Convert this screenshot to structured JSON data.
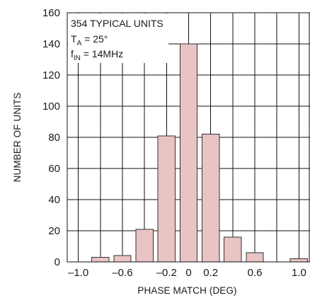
{
  "chart_data": {
    "type": "bar",
    "title": "",
    "xlabel": "PHASE MATCH (DEG)",
    "ylabel": "NUMBER OF UNITS",
    "xlim": [
      -1.1,
      1.1
    ],
    "ylim": [
      0,
      160
    ],
    "x_ticks": [
      "–1.0",
      "–0.6",
      "–0.2",
      "0",
      "0.2",
      "0.6",
      "1.0"
    ],
    "x_tick_values": [
      -1.0,
      -0.6,
      -0.2,
      0,
      0.2,
      0.6,
      1.0
    ],
    "y_ticks": [
      0,
      20,
      40,
      60,
      80,
      100,
      120,
      140,
      160
    ],
    "grid": true,
    "bar_color": "#e8c4c4",
    "bar_edge_color": "#333333",
    "bars": [
      {
        "x": -0.8,
        "value": 3
      },
      {
        "x": -0.6,
        "value": 4
      },
      {
        "x": -0.4,
        "value": 21
      },
      {
        "x": -0.2,
        "value": 81
      },
      {
        "x": 0.0,
        "value": 140
      },
      {
        "x": 0.2,
        "value": 82
      },
      {
        "x": 0.4,
        "value": 16
      },
      {
        "x": 0.6,
        "value": 6
      },
      {
        "x": 1.0,
        "value": 2
      }
    ],
    "annotation": {
      "line1": "354 TYPICAL UNITS",
      "line2_main": "T",
      "line2_sub": "A",
      "line2_rest": " = 25°",
      "line3_main": "f",
      "line3_sub": "IN",
      "line3_rest": " = 14MHz"
    }
  }
}
